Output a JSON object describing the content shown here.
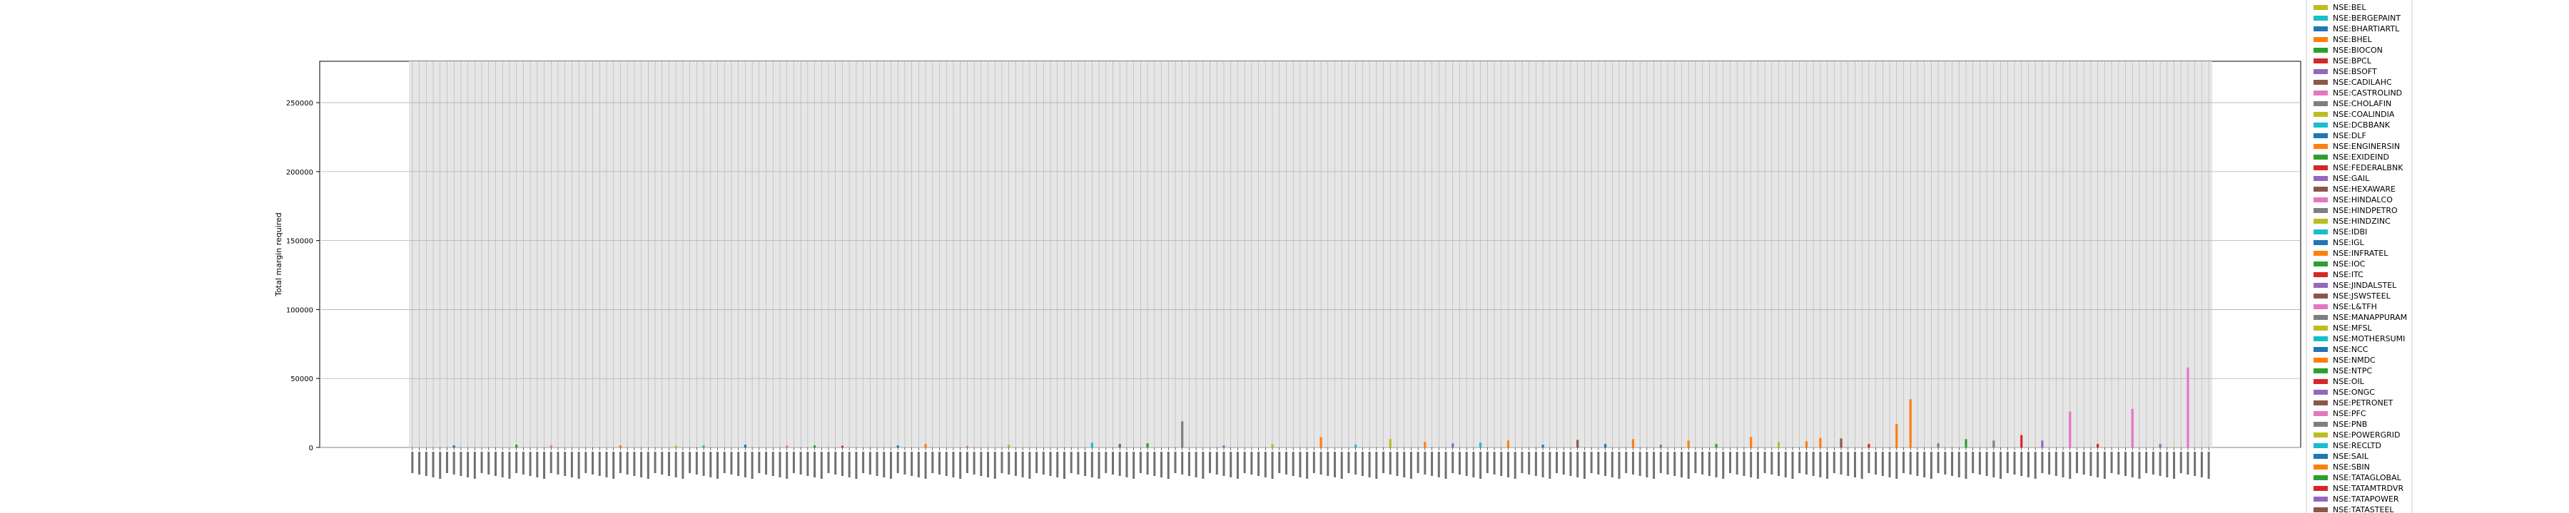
{
  "chart_data": {
    "type": "bar",
    "ylabel": "Total margin required",
    "xlabel": "",
    "ylim": [
      0,
      280000
    ],
    "yticks": [
      0,
      50000,
      100000,
      150000,
      200000,
      250000
    ],
    "grid": true,
    "legend_position": "right (clipped at top and bottom)",
    "n_categories": 260,
    "series": [
      {
        "name": "NSE:BEL",
        "color": "#bcbd22"
      },
      {
        "name": "NSE:BERGEPAINT",
        "color": "#17becf"
      },
      {
        "name": "NSE:BHARTIARTL",
        "color": "#1f77b4"
      },
      {
        "name": "NSE:BHEL",
        "color": "#ff7f0e"
      },
      {
        "name": "NSE:BIOCON",
        "color": "#2ca02c"
      },
      {
        "name": "NSE:BPCL",
        "color": "#d62728"
      },
      {
        "name": "NSE:BSOFT",
        "color": "#9467bd"
      },
      {
        "name": "NSE:CADILAHC",
        "color": "#8c564b"
      },
      {
        "name": "NSE:CASTROLIND",
        "color": "#e377c2"
      },
      {
        "name": "NSE:CHOLAFIN",
        "color": "#7f7f7f"
      },
      {
        "name": "NSE:COALINDIA",
        "color": "#bcbd22"
      },
      {
        "name": "NSE:DCBBANK",
        "color": "#17becf"
      },
      {
        "name": "NSE:DLF",
        "color": "#1f77b4"
      },
      {
        "name": "NSE:ENGINERSIN",
        "color": "#ff7f0e"
      },
      {
        "name": "NSE:EXIDEIND",
        "color": "#2ca02c"
      },
      {
        "name": "NSE:FEDERALBNK",
        "color": "#d62728"
      },
      {
        "name": "NSE:GAIL",
        "color": "#9467bd"
      },
      {
        "name": "NSE:HEXAWARE",
        "color": "#8c564b"
      },
      {
        "name": "NSE:HINDALCO",
        "color": "#e377c2"
      },
      {
        "name": "NSE:HINDPETRO",
        "color": "#7f7f7f"
      },
      {
        "name": "NSE:HINDZINC",
        "color": "#bcbd22"
      },
      {
        "name": "NSE:IDBI",
        "color": "#17becf"
      },
      {
        "name": "NSE:IGL",
        "color": "#1f77b4"
      },
      {
        "name": "NSE:INFRATEL",
        "color": "#ff7f0e"
      },
      {
        "name": "NSE:IOC",
        "color": "#2ca02c"
      },
      {
        "name": "NSE:ITC",
        "color": "#d62728"
      },
      {
        "name": "NSE:JINDALSTEL",
        "color": "#9467bd"
      },
      {
        "name": "NSE:JSWSTEEL",
        "color": "#8c564b"
      },
      {
        "name": "NSE:L&TFH",
        "color": "#e377c2"
      },
      {
        "name": "NSE:MANAPPURAM",
        "color": "#7f7f7f"
      },
      {
        "name": "NSE:MFSL",
        "color": "#bcbd22"
      },
      {
        "name": "NSE:MOTHERSUMI",
        "color": "#17becf"
      },
      {
        "name": "NSE:NCC",
        "color": "#1f77b4"
      },
      {
        "name": "NSE:NMDC",
        "color": "#ff7f0e"
      },
      {
        "name": "NSE:NTPC",
        "color": "#2ca02c"
      },
      {
        "name": "NSE:OIL",
        "color": "#d62728"
      },
      {
        "name": "NSE:ONGC",
        "color": "#9467bd"
      },
      {
        "name": "NSE:PETRONET",
        "color": "#8c564b"
      },
      {
        "name": "NSE:PFC",
        "color": "#e377c2"
      },
      {
        "name": "NSE:PNB",
        "color": "#7f7f7f"
      },
      {
        "name": "NSE:POWERGRID",
        "color": "#bcbd22"
      },
      {
        "name": "NSE:RECLTD",
        "color": "#17becf"
      },
      {
        "name": "NSE:SAIL",
        "color": "#1f77b4"
      },
      {
        "name": "NSE:SBIN",
        "color": "#ff7f0e"
      },
      {
        "name": "NSE:TATAGLOBAL",
        "color": "#2ca02c"
      },
      {
        "name": "NSE:TATAMTRDVR",
        "color": "#d62728"
      },
      {
        "name": "NSE:TATAPOWER",
        "color": "#9467bd"
      },
      {
        "name": "NSE:TATASTEEL",
        "color": "#8c564b"
      }
    ],
    "bars": [
      {
        "category_index": 6,
        "series": "NSE:BHARTIARTL",
        "value": 1500
      },
      {
        "category_index": 15,
        "series": "NSE:BIOCON",
        "value": 2000
      },
      {
        "category_index": 20,
        "series": "NSE:HINDALCO",
        "value": 1500
      },
      {
        "category_index": 30,
        "series": "NSE:BHEL",
        "value": 1500
      },
      {
        "category_index": 38,
        "series": "NSE:BEL",
        "value": 1200
      },
      {
        "category_index": 42,
        "series": "NSE:IDBI",
        "value": 1500
      },
      {
        "category_index": 48,
        "series": "NSE:DLF",
        "value": 2000
      },
      {
        "category_index": 54,
        "series": "NSE:PFC",
        "value": 1500
      },
      {
        "category_index": 58,
        "series": "NSE:NTPC",
        "value": 1500
      },
      {
        "category_index": 62,
        "series": "NSE:BPCL",
        "value": 1200
      },
      {
        "category_index": 70,
        "series": "NSE:BHARTIARTL",
        "value": 1500
      },
      {
        "category_index": 74,
        "series": "NSE:SBIN",
        "value": 2500
      },
      {
        "category_index": 80,
        "series": "NSE:CASTROLIND",
        "value": 1200
      },
      {
        "category_index": 86,
        "series": "NSE:COALINDIA",
        "value": 2000
      },
      {
        "category_index": 98,
        "series": "NSE:BERGEPAINT",
        "value": 3500
      },
      {
        "category_index": 102,
        "series": "NSE:PETRONET",
        "value": 2500
      },
      {
        "category_index": 106,
        "series": "NSE:IOC",
        "value": 3000
      },
      {
        "category_index": 111,
        "series": "NSE:CHOLAFIN",
        "value": 19000
      },
      {
        "category_index": 117,
        "series": "NSE:GAIL",
        "value": 1500
      },
      {
        "category_index": 124,
        "series": "NSE:HINDZINC",
        "value": 2500
      },
      {
        "category_index": 131,
        "series": "NSE:BHEL",
        "value": 7500
      },
      {
        "category_index": 136,
        "series": "NSE:DCBBANK",
        "value": 2000
      },
      {
        "category_index": 141,
        "series": "NSE:COALINDIA",
        "value": 6000
      },
      {
        "category_index": 146,
        "series": "NSE:NMDC",
        "value": 4000
      },
      {
        "category_index": 150,
        "series": "NSE:TATAPOWER",
        "value": 3000
      },
      {
        "category_index": 154,
        "series": "NSE:MOTHERSUMI",
        "value": 3500
      },
      {
        "category_index": 158,
        "series": "NSE:ENGINERSIN",
        "value": 5000
      },
      {
        "category_index": 163,
        "series": "NSE:SAIL",
        "value": 2000
      },
      {
        "category_index": 168,
        "series": "NSE:JSWSTEEL",
        "value": 5500
      },
      {
        "category_index": 172,
        "series": "NSE:IGL",
        "value": 2500
      },
      {
        "category_index": 176,
        "series": "NSE:INFRATEL",
        "value": 6000
      },
      {
        "category_index": 180,
        "series": "NSE:HINDPETRO",
        "value": 2000
      },
      {
        "category_index": 184,
        "series": "NSE:BHEL",
        "value": 5000
      },
      {
        "category_index": 188,
        "series": "NSE:TATAGLOBAL",
        "value": 2500
      },
      {
        "category_index": 193,
        "series": "NSE:BHEL",
        "value": 7500
      },
      {
        "category_index": 197,
        "series": "NSE:MFSL",
        "value": 4000
      },
      {
        "category_index": 201,
        "series": "NSE:ENGINERSIN",
        "value": 4500
      },
      {
        "category_index": 203,
        "series": "NSE:SBIN",
        "value": 7000
      },
      {
        "category_index": 206,
        "series": "NSE:PETRONET",
        "value": 6500
      },
      {
        "category_index": 210,
        "series": "NSE:OIL",
        "value": 2500
      },
      {
        "category_index": 214,
        "series": "NSE:BHEL",
        "value": 17000
      },
      {
        "category_index": 216,
        "series": "NSE:BHEL",
        "value": 35000
      },
      {
        "category_index": 220,
        "series": "NSE:PNB",
        "value": 3000
      },
      {
        "category_index": 224,
        "series": "NSE:NTPC",
        "value": 6000
      },
      {
        "category_index": 228,
        "series": "NSE:CHOLAFIN",
        "value": 5000
      },
      {
        "category_index": 232,
        "series": "NSE:OIL",
        "value": 9000
      },
      {
        "category_index": 235,
        "series": "NSE:BSOFT",
        "value": 5000
      },
      {
        "category_index": 239,
        "series": "NSE:HINDALCO",
        "value": 26000
      },
      {
        "category_index": 243,
        "series": "NSE:FEDERALBNK",
        "value": 2500
      },
      {
        "category_index": 248,
        "series": "NSE:HINDALCO",
        "value": 28000
      },
      {
        "category_index": 252,
        "series": "NSE:GAIL",
        "value": 2500
      },
      {
        "category_index": 256,
        "series": "NSE:HINDALCO",
        "value": 58000
      }
    ]
  }
}
